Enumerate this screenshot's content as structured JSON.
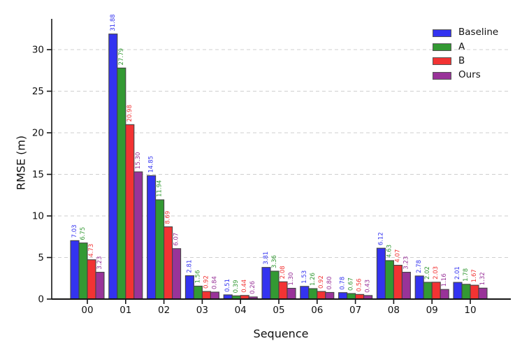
{
  "chart_data": {
    "type": "bar",
    "title": "",
    "xlabel": "Sequence",
    "ylabel": "RMSE (m)",
    "categories": [
      "00",
      "01",
      "02",
      "03",
      "04",
      "05",
      "06",
      "07",
      "08",
      "09",
      "10"
    ],
    "series": [
      {
        "name": "Baseline",
        "color": "#3333f0",
        "values": [
          7.03,
          31.88,
          14.85,
          2.81,
          0.51,
          3.81,
          1.53,
          0.78,
          6.12,
          2.78,
          2.01
        ]
      },
      {
        "name": "A",
        "color": "#339933",
        "values": [
          6.75,
          27.79,
          11.94,
          1.56,
          0.39,
          3.36,
          1.26,
          0.67,
          4.63,
          2.02,
          1.78
        ]
      },
      {
        "name": "B",
        "color": "#f23333",
        "values": [
          4.73,
          20.98,
          8.69,
          0.92,
          0.44,
          2.08,
          0.92,
          0.56,
          4.07,
          2.03,
          1.67
        ]
      },
      {
        "name": "Ours",
        "color": "#993399",
        "values": [
          3.23,
          15.3,
          6.07,
          0.84,
          0.26,
          1.3,
          0.8,
          0.43,
          3.23,
          1.16,
          1.32
        ]
      }
    ],
    "yticks": [
      0,
      5,
      10,
      15,
      20,
      25,
      30
    ],
    "ylim": [
      0,
      33.7
    ],
    "grid": "horizontal-dashed",
    "legend_position": "upper-right",
    "value_label_decimals": 2,
    "colors": {
      "bar_edge": "#444444",
      "grid_line": "#cfcfcf",
      "axis_line": "#151515",
      "tick_text": "#111111"
    }
  }
}
